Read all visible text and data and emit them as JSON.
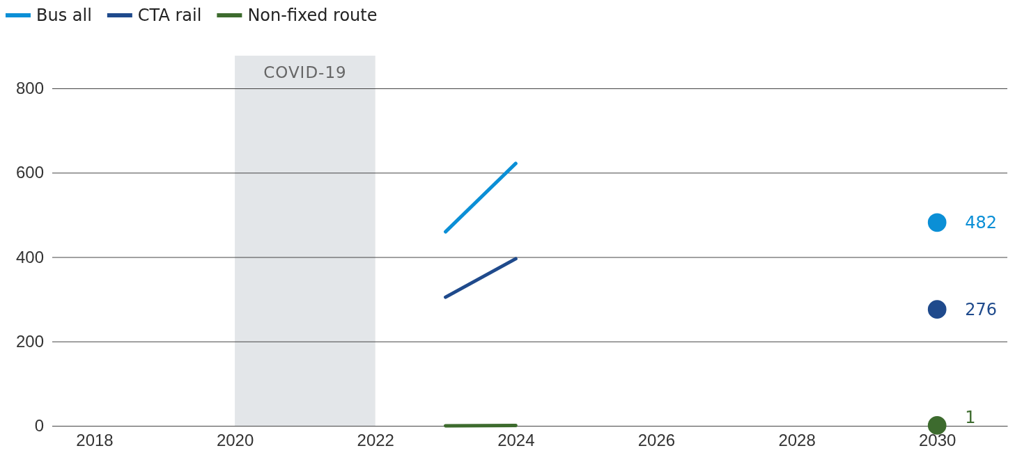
{
  "chart_data": {
    "type": "line",
    "xlim": [
      2017.4,
      2031
    ],
    "xticks": [
      2018,
      2020,
      2022,
      2024,
      2026,
      2028,
      2030
    ],
    "ylim": [
      0,
      800
    ],
    "yticks": [
      0,
      200,
      400,
      600,
      800
    ],
    "grid": "y",
    "legend": "top left",
    "line_style": "solid",
    "marker": "none",
    "series": [
      {
        "name": "Bus all",
        "color": "#0b8fd6",
        "x": [
          2023,
          2024
        ],
        "values": [
          460,
          622
        ]
      },
      {
        "name": "CTA rail",
        "color": "#1f4a8c",
        "x": [
          2023,
          2024
        ],
        "values": [
          305,
          396
        ]
      },
      {
        "name": "Non-fixed route",
        "color": "#3d6b2e",
        "x": [
          2023,
          2024
        ],
        "values": [
          0,
          1
        ]
      },
      {
        "type": "scatter",
        "marker": "circle",
        "color": "#0b8fd6",
        "x": [
          2030
        ],
        "values": [
          482
        ],
        "value_labels": [
          "482"
        ]
      },
      {
        "type": "scatter",
        "marker": "circle",
        "color": "#1f4a8c",
        "x": [
          2030
        ],
        "values": [
          276
        ],
        "value_labels": [
          "276"
        ]
      },
      {
        "type": "scatter",
        "marker": "circle",
        "color": "#3d6b2e",
        "x": [
          2030
        ],
        "values": [
          1
        ],
        "value_labels": [
          "1"
        ]
      }
    ],
    "bands": [
      {
        "axis": "x",
        "from": 2020,
        "to": 2022,
        "label": "COVID-19",
        "color": "#e3e6e9"
      }
    ]
  }
}
